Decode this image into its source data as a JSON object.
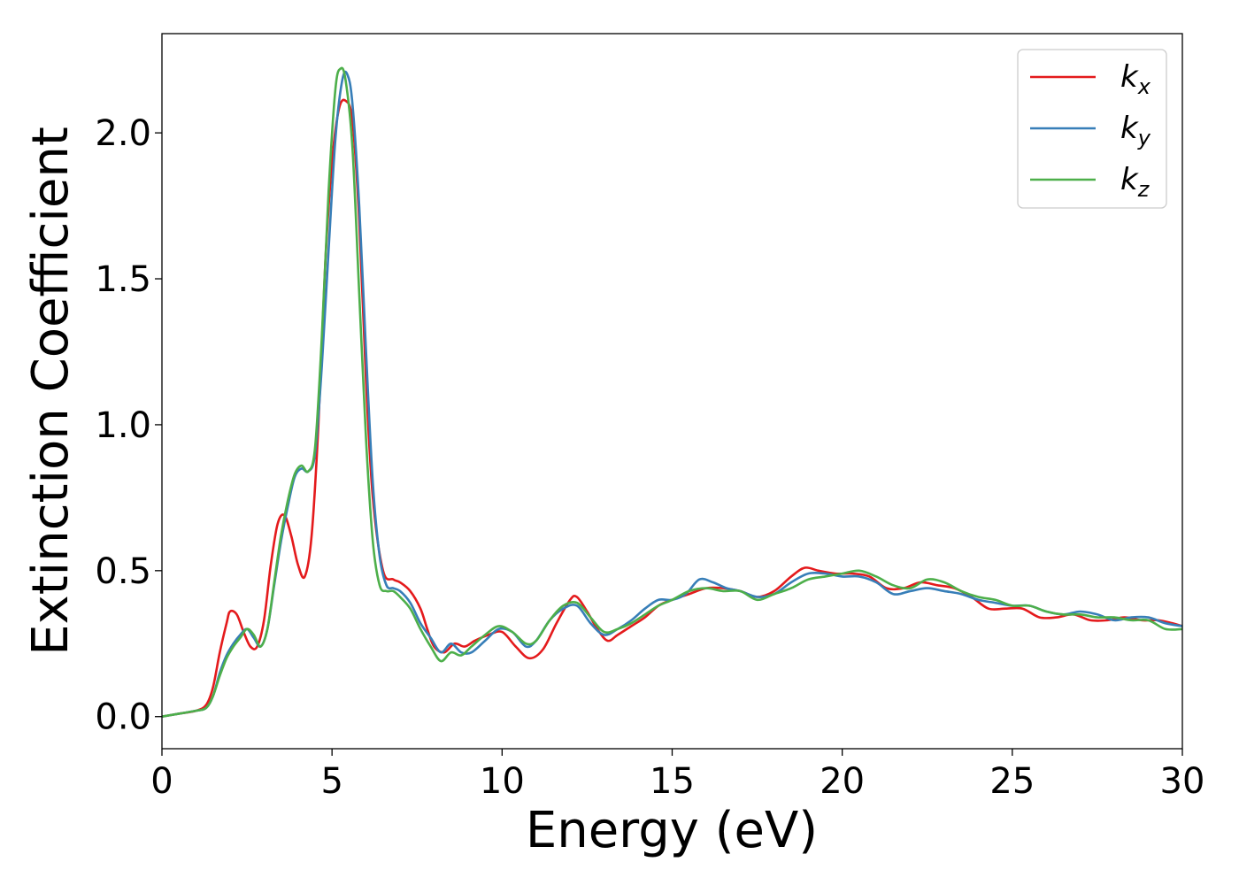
{
  "chart_data": {
    "type": "line",
    "xlabel": "Energy (eV)",
    "ylabel": "Extinction Coefficient",
    "xlim": [
      0,
      30
    ],
    "ylim": [
      -0.11,
      2.34
    ],
    "xticks": [
      0,
      5,
      10,
      15,
      20,
      25,
      30
    ],
    "yticks": [
      0.0,
      0.5,
      1.0,
      1.5,
      2.0
    ],
    "xtick_labels": [
      "0",
      "5",
      "10",
      "15",
      "20",
      "25",
      "30"
    ],
    "ytick_labels": [
      "0.0",
      "0.5",
      "1.0",
      "1.5",
      "2.0"
    ],
    "grid": false,
    "legend_position": "top-right",
    "series": [
      {
        "name": "k_x",
        "label_main": "k",
        "label_sub": "x",
        "color": "#e41a1c",
        "x": [
          0,
          0.5,
          1.0,
          1.3,
          1.5,
          1.7,
          1.9,
          2.0,
          2.2,
          2.4,
          2.6,
          2.8,
          3.0,
          3.2,
          3.4,
          3.6,
          3.8,
          4.0,
          4.2,
          4.4,
          4.6,
          4.8,
          5.0,
          5.2,
          5.4,
          5.6,
          5.8,
          6.0,
          6.2,
          6.5,
          6.8,
          7.0,
          7.3,
          7.6,
          7.8,
          8.0,
          8.3,
          8.6,
          8.9,
          9.2,
          9.6,
          10.0,
          10.4,
          10.8,
          11.2,
          11.6,
          12.0,
          12.2,
          12.5,
          12.8,
          13.1,
          13.4,
          13.8,
          14.2,
          14.6,
          15.0,
          15.5,
          16.0,
          16.5,
          17.0,
          17.5,
          18.0,
          18.5,
          18.9,
          19.3,
          19.8,
          20.3,
          20.8,
          21.3,
          21.8,
          22.3,
          22.8,
          23.3,
          23.8,
          24.3,
          24.8,
          25.3,
          25.8,
          26.3,
          26.8,
          27.3,
          27.8,
          28.3,
          28.8,
          29.3,
          29.7,
          30.0
        ],
        "y": [
          0.0,
          0.01,
          0.02,
          0.04,
          0.1,
          0.22,
          0.32,
          0.36,
          0.35,
          0.29,
          0.24,
          0.24,
          0.33,
          0.52,
          0.66,
          0.69,
          0.62,
          0.52,
          0.48,
          0.62,
          1.0,
          1.55,
          1.9,
          2.08,
          2.11,
          2.04,
          1.7,
          1.15,
          0.75,
          0.5,
          0.47,
          0.46,
          0.43,
          0.37,
          0.3,
          0.24,
          0.22,
          0.25,
          0.24,
          0.26,
          0.28,
          0.29,
          0.24,
          0.2,
          0.23,
          0.32,
          0.4,
          0.41,
          0.36,
          0.3,
          0.26,
          0.28,
          0.31,
          0.34,
          0.38,
          0.4,
          0.42,
          0.44,
          0.44,
          0.43,
          0.41,
          0.43,
          0.48,
          0.51,
          0.5,
          0.49,
          0.49,
          0.48,
          0.44,
          0.44,
          0.46,
          0.45,
          0.44,
          0.41,
          0.37,
          0.37,
          0.37,
          0.34,
          0.34,
          0.35,
          0.33,
          0.33,
          0.34,
          0.33,
          0.33,
          0.32,
          0.31
        ]
      },
      {
        "name": "k_y",
        "label_main": "k",
        "label_sub": "y",
        "color": "#377eb8",
        "x": [
          0,
          0.5,
          1.0,
          1.3,
          1.5,
          1.7,
          1.9,
          2.1,
          2.3,
          2.5,
          2.7,
          2.9,
          3.1,
          3.3,
          3.5,
          3.7,
          3.9,
          4.1,
          4.3,
          4.5,
          4.7,
          4.9,
          5.1,
          5.3,
          5.45,
          5.6,
          5.8,
          6.0,
          6.2,
          6.4,
          6.6,
          6.8,
          7.0,
          7.3,
          7.6,
          7.9,
          8.2,
          8.5,
          8.8,
          9.1,
          9.5,
          9.9,
          10.3,
          10.7,
          11.0,
          11.4,
          11.8,
          12.2,
          12.6,
          13.0,
          13.4,
          13.8,
          14.2,
          14.6,
          15.0,
          15.4,
          15.8,
          16.2,
          16.6,
          17.0,
          17.5,
          18.0,
          18.5,
          19.0,
          19.5,
          20.0,
          20.5,
          21.0,
          21.5,
          22.0,
          22.5,
          23.0,
          23.5,
          24.0,
          24.5,
          25.0,
          25.5,
          26.0,
          26.5,
          27.0,
          27.5,
          28.0,
          28.5,
          29.0,
          29.5,
          30.0
        ],
        "y": [
          0.0,
          0.01,
          0.02,
          0.03,
          0.07,
          0.15,
          0.21,
          0.25,
          0.28,
          0.3,
          0.27,
          0.24,
          0.3,
          0.45,
          0.6,
          0.72,
          0.82,
          0.85,
          0.84,
          0.9,
          1.2,
          1.6,
          1.98,
          2.18,
          2.2,
          2.1,
          1.75,
          1.25,
          0.8,
          0.55,
          0.45,
          0.44,
          0.43,
          0.39,
          0.32,
          0.27,
          0.22,
          0.25,
          0.22,
          0.22,
          0.26,
          0.3,
          0.29,
          0.24,
          0.26,
          0.33,
          0.37,
          0.38,
          0.32,
          0.28,
          0.3,
          0.33,
          0.37,
          0.4,
          0.4,
          0.42,
          0.47,
          0.46,
          0.44,
          0.43,
          0.41,
          0.42,
          0.46,
          0.49,
          0.49,
          0.48,
          0.48,
          0.46,
          0.42,
          0.43,
          0.44,
          0.43,
          0.42,
          0.4,
          0.39,
          0.38,
          0.38,
          0.36,
          0.35,
          0.36,
          0.35,
          0.33,
          0.34,
          0.34,
          0.32,
          0.31
        ]
      },
      {
        "name": "k_z",
        "label_main": "k",
        "label_sub": "z",
        "color": "#4daf4a",
        "x": [
          0,
          0.5,
          1.0,
          1.3,
          1.5,
          1.7,
          1.9,
          2.1,
          2.3,
          2.5,
          2.7,
          2.9,
          3.1,
          3.3,
          3.5,
          3.7,
          3.9,
          4.1,
          4.3,
          4.5,
          4.7,
          4.9,
          5.1,
          5.25,
          5.4,
          5.6,
          5.8,
          6.0,
          6.2,
          6.4,
          6.6,
          6.8,
          7.0,
          7.3,
          7.6,
          7.9,
          8.2,
          8.5,
          8.8,
          9.1,
          9.5,
          9.9,
          10.3,
          10.7,
          11.0,
          11.4,
          11.8,
          12.2,
          12.6,
          13.0,
          13.4,
          13.8,
          14.2,
          14.6,
          15.0,
          15.5,
          16.0,
          16.5,
          17.0,
          17.5,
          18.0,
          18.5,
          19.0,
          19.5,
          20.0,
          20.5,
          21.0,
          21.5,
          22.0,
          22.5,
          23.0,
          23.5,
          24.0,
          24.5,
          25.0,
          25.5,
          26.0,
          26.5,
          27.0,
          27.5,
          28.0,
          28.5,
          29.0,
          29.5,
          30.0
        ],
        "y": [
          0.0,
          0.01,
          0.02,
          0.03,
          0.07,
          0.14,
          0.2,
          0.24,
          0.27,
          0.3,
          0.28,
          0.24,
          0.3,
          0.46,
          0.62,
          0.74,
          0.83,
          0.86,
          0.84,
          0.92,
          1.3,
          1.8,
          2.15,
          2.22,
          2.18,
          1.95,
          1.45,
          0.95,
          0.6,
          0.45,
          0.43,
          0.43,
          0.41,
          0.37,
          0.3,
          0.24,
          0.19,
          0.22,
          0.21,
          0.24,
          0.28,
          0.31,
          0.29,
          0.25,
          0.26,
          0.33,
          0.38,
          0.39,
          0.34,
          0.29,
          0.3,
          0.32,
          0.35,
          0.38,
          0.4,
          0.43,
          0.44,
          0.43,
          0.43,
          0.4,
          0.42,
          0.44,
          0.47,
          0.48,
          0.49,
          0.5,
          0.48,
          0.45,
          0.44,
          0.47,
          0.46,
          0.43,
          0.41,
          0.4,
          0.38,
          0.38,
          0.36,
          0.35,
          0.35,
          0.34,
          0.34,
          0.33,
          0.33,
          0.3,
          0.3
        ]
      }
    ]
  }
}
